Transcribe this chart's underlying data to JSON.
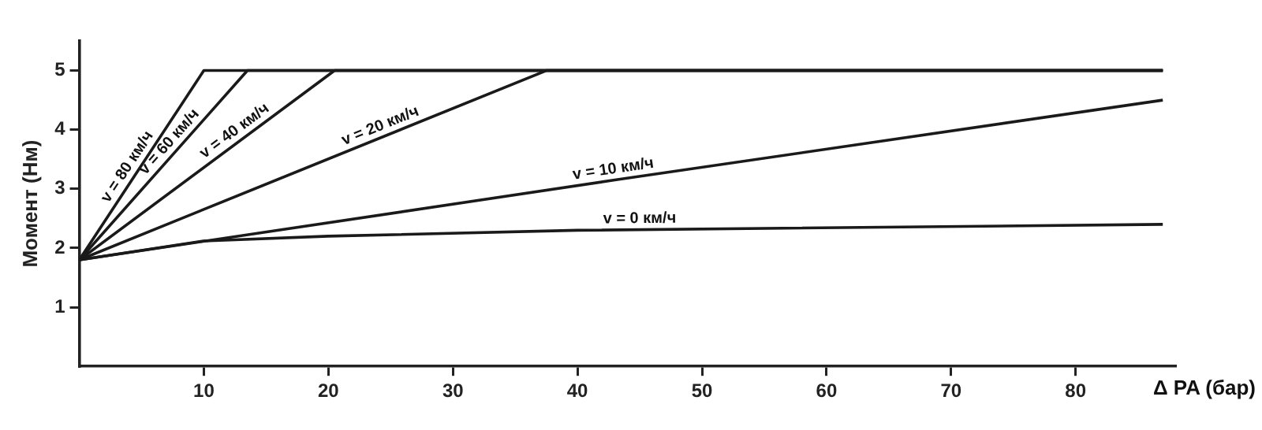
{
  "chart_data": {
    "type": "line",
    "xlabel": "Δ PA (бар)",
    "ylabel": "Момент (Нм)",
    "series": [
      {
        "color": "#1a1a1a",
        "x": [
          0,
          10,
          87
        ],
        "values": [
          1.8,
          5,
          5
        ]
      },
      {
        "color": "#1a1a1a",
        "x": [
          0,
          13.5,
          87
        ],
        "values": [
          1.8,
          5,
          5
        ]
      },
      {
        "color": "#1a1a1a",
        "x": [
          0,
          20.5,
          87
        ],
        "values": [
          1.8,
          5,
          5
        ]
      },
      {
        "color": "#1a1a1a",
        "x": [
          0,
          37.5,
          87
        ],
        "values": [
          1.8,
          5,
          5
        ]
      },
      {
        "color": "#1a1a1a",
        "x": [
          0,
          43,
          87
        ],
        "values": [
          1.8,
          3.15,
          4.5
        ]
      },
      {
        "color": "#1a1a1a",
        "x": [
          0,
          10,
          20,
          40,
          87
        ],
        "values": [
          1.8,
          2.12,
          2.2,
          2.3,
          2.4
        ]
      }
    ],
    "annotations": [
      {
        "text": "v = 80 км/ч",
        "x": 4.6,
        "y": 3.27
      },
      {
        "text": "v = 60 км/ч",
        "x": 7.9,
        "y": 3.67
      },
      {
        "text": "v = 40 км/ч",
        "x": 13,
        "y": 3.83
      },
      {
        "text": "v = 20 км/ч",
        "x": 24.5,
        "y": 3.89
      },
      {
        "text": "v = 10 км/ч",
        "x": 43,
        "y": 3.15
      },
      {
        "text": "v = 0 км/ч",
        "x": 45,
        "y": 2.31
      }
    ],
    "xlim": [
      0,
      88
    ],
    "ylim": [
      0,
      5.5
    ],
    "xticks": [
      10,
      20,
      30,
      40,
      50,
      60,
      70,
      80
    ],
    "yticks": [
      1,
      2,
      3,
      4,
      5
    ],
    "grid": false,
    "legend": false,
    "marker": "none",
    "line_style": "solid"
  }
}
